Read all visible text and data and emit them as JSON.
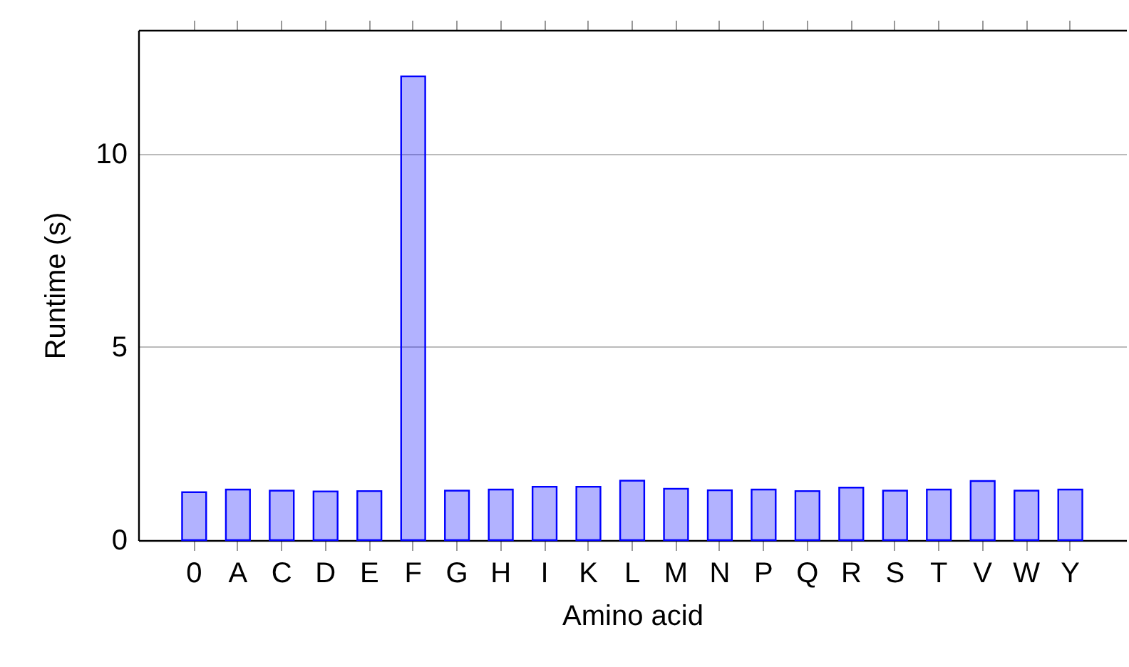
{
  "chart_data": {
    "type": "bar",
    "xlabel": "Amino acid",
    "ylabel": "Runtime (s)",
    "categories": [
      "0",
      "A",
      "C",
      "D",
      "E",
      "F",
      "G",
      "H",
      "I",
      "K",
      "L",
      "M",
      "N",
      "P",
      "Q",
      "R",
      "S",
      "T",
      "V",
      "W",
      "Y"
    ],
    "values": [
      1.24,
      1.31,
      1.28,
      1.26,
      1.27,
      12.0,
      1.28,
      1.31,
      1.38,
      1.38,
      1.54,
      1.33,
      1.29,
      1.31,
      1.27,
      1.36,
      1.28,
      1.31,
      1.53,
      1.28,
      1.31
    ],
    "color": "#0000ff",
    "ylim": [
      0,
      13.2
    ],
    "yticks": [
      0,
      5,
      10
    ],
    "grid": "y"
  }
}
